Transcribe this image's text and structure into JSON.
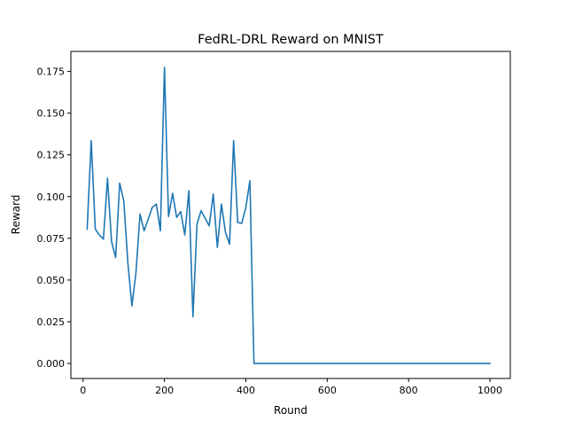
{
  "chart_data": {
    "type": "line",
    "title": "FedRL-DRL Reward on MNIST",
    "xlabel": "Round",
    "ylabel": "Reward",
    "xlim": [
      -30,
      1050
    ],
    "ylim": [
      -0.009,
      0.187
    ],
    "xticks": [
      0,
      200,
      400,
      600,
      800,
      1000
    ],
    "yticks": [
      0.0,
      0.025,
      0.05,
      0.075,
      0.1,
      0.125,
      0.15,
      0.175
    ],
    "xtick_labels": [
      "0",
      "200",
      "400",
      "600",
      "800",
      "1000"
    ],
    "ytick_labels": [
      "0.000",
      "0.025",
      "0.050",
      "0.075",
      "0.100",
      "0.125",
      "0.150",
      "0.175"
    ],
    "grid": false,
    "series": [
      {
        "color": "#1f77b4",
        "x": [
          10,
          20,
          30,
          40,
          50,
          60,
          70,
          80,
          90,
          100,
          110,
          120,
          130,
          140,
          150,
          160,
          170,
          180,
          190,
          200,
          210,
          220,
          230,
          240,
          250,
          260,
          270,
          280,
          290,
          300,
          310,
          320,
          330,
          340,
          350,
          360,
          370,
          380,
          390,
          400,
          410,
          420,
          430,
          440,
          450,
          460,
          470,
          480,
          490,
          500,
          510,
          520,
          530,
          540,
          550,
          560,
          570,
          580,
          590,
          600,
          610,
          620,
          630,
          640,
          650,
          660,
          670,
          680,
          690,
          700,
          710,
          720,
          730,
          740,
          750,
          760,
          770,
          780,
          790,
          800,
          810,
          820,
          830,
          840,
          850,
          860,
          870,
          880,
          890,
          900,
          910,
          920,
          930,
          940,
          950,
          960,
          970,
          980,
          990,
          1000
        ],
        "y": [
          0.0805,
          0.1335,
          0.0805,
          0.077,
          0.0745,
          0.111,
          0.073,
          0.0635,
          0.108,
          0.0975,
          0.0605,
          0.0345,
          0.0545,
          0.0895,
          0.0795,
          0.0865,
          0.0935,
          0.0955,
          0.0795,
          0.1775,
          0.088,
          0.102,
          0.0875,
          0.091,
          0.077,
          0.1035,
          0.028,
          0.0835,
          0.0915,
          0.087,
          0.0825,
          0.1015,
          0.0695,
          0.0955,
          0.0785,
          0.0715,
          0.1335,
          0.0845,
          0.084,
          0.0935,
          0.1095,
          0.0,
          0.0,
          0.0,
          0.0,
          0.0,
          0.0,
          0.0,
          0.0,
          0.0,
          0.0,
          0.0,
          0.0,
          0.0,
          0.0,
          0.0,
          0.0,
          0.0,
          0.0,
          0.0,
          0.0,
          0.0,
          0.0,
          0.0,
          0.0,
          0.0,
          0.0,
          0.0,
          0.0,
          0.0,
          0.0,
          0.0,
          0.0,
          0.0,
          0.0,
          0.0,
          0.0,
          0.0,
          0.0,
          0.0,
          0.0,
          0.0,
          0.0,
          0.0,
          0.0,
          0.0,
          0.0,
          0.0,
          0.0,
          0.0,
          0.0,
          0.0,
          0.0,
          0.0,
          0.0,
          0.0,
          0.0,
          0.0,
          0.0,
          0.0
        ]
      }
    ]
  }
}
